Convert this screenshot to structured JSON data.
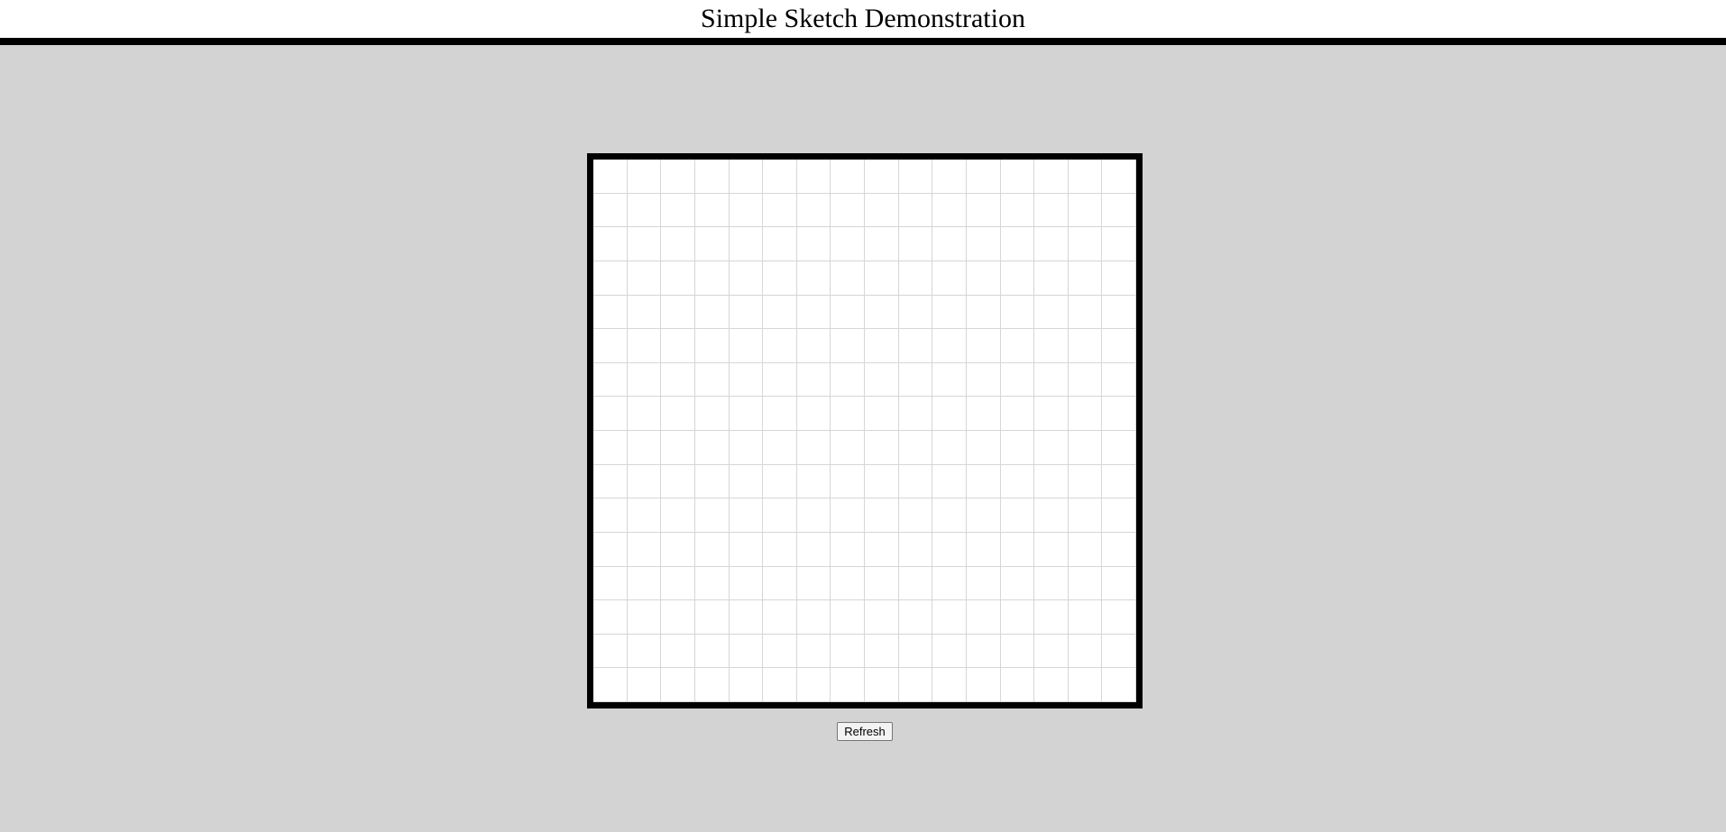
{
  "header": {
    "title": "Simple Sketch Demonstration"
  },
  "board": {
    "columns": 16,
    "rows": 16,
    "cell_color": "#ffffff",
    "grid_line_color": "#d6d6d6",
    "border_color": "#000000"
  },
  "controls": {
    "refresh_label": "Refresh"
  },
  "colors": {
    "page_background": "#d3d3d3",
    "header_background": "#ffffff",
    "header_rule": "#000000"
  }
}
